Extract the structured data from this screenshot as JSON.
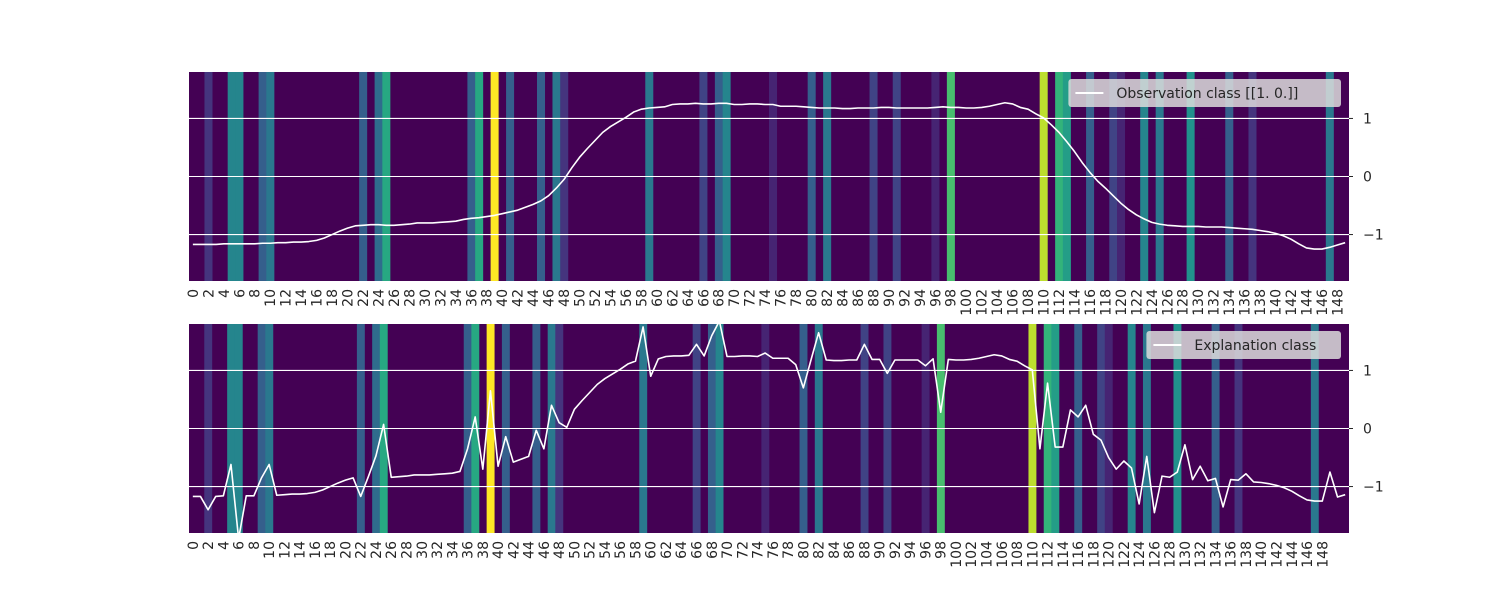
{
  "colors": {
    "background": "#ffffff",
    "line": "#ffffff",
    "grid": "#ffffff",
    "text": "#262626",
    "legend_bg": "#dcdcdc",
    "viridis": [
      "#440154",
      "#472d7b",
      "#3b528b",
      "#2c728e",
      "#21918c",
      "#28ae80",
      "#5ec962",
      "#addc30",
      "#fde725"
    ]
  },
  "chart_data": [
    {
      "type": "line",
      "legend": "Observation class [[1. 0.]]",
      "legend_placement": "top-right",
      "background": "heatmap",
      "grid": true,
      "xlim": [
        0,
        149
      ],
      "ylim": [
        -1.8,
        1.8
      ],
      "yticks": [
        1,
        0,
        -1
      ],
      "ytick_labels": [
        "1",
        "0",
        "−1"
      ],
      "xtick_labels": [
        "0",
        "2",
        "4",
        "6",
        "8",
        "10",
        "12",
        "14",
        "16",
        "18",
        "20",
        "22",
        "24",
        "26",
        "28",
        "30",
        "32",
        "34",
        "36",
        "38",
        "40",
        "42",
        "44",
        "46",
        "48",
        "50",
        "52",
        "54",
        "56",
        "58",
        "60",
        "62",
        "64",
        "66",
        "68",
        "70",
        "72",
        "74",
        "76",
        "78",
        "80",
        "82",
        "84",
        "86",
        "88",
        "90",
        "92",
        "94",
        "96",
        "98",
        "100",
        "102",
        "104",
        "106",
        "108",
        "110",
        "112",
        "114",
        "116",
        "118",
        "120",
        "122",
        "124",
        "126",
        "128",
        "130",
        "132",
        "134",
        "136",
        "138",
        "140",
        "142",
        "144",
        "146",
        "148"
      ],
      "heat_index": [
        {
          "i": 2,
          "v": 0.15
        },
        {
          "i": 5,
          "v": 0.45
        },
        {
          "i": 6,
          "v": 0.45
        },
        {
          "i": 9,
          "v": 0.3
        },
        {
          "i": 10,
          "v": 0.4
        },
        {
          "i": 22,
          "v": 0.3
        },
        {
          "i": 24,
          "v": 0.35
        },
        {
          "i": 25,
          "v": 0.6
        },
        {
          "i": 36,
          "v": 0.3
        },
        {
          "i": 37,
          "v": 0.6
        },
        {
          "i": 39,
          "v": 1.0
        },
        {
          "i": 41,
          "v": 0.3
        },
        {
          "i": 45,
          "v": 0.3
        },
        {
          "i": 47,
          "v": 0.4
        },
        {
          "i": 48,
          "v": 0.15
        },
        {
          "i": 59,
          "v": 0.4
        },
        {
          "i": 66,
          "v": 0.2
        },
        {
          "i": 68,
          "v": 0.3
        },
        {
          "i": 69,
          "v": 0.45
        },
        {
          "i": 75,
          "v": 0.1
        },
        {
          "i": 80,
          "v": 0.3
        },
        {
          "i": 82,
          "v": 0.4
        },
        {
          "i": 88,
          "v": 0.2
        },
        {
          "i": 91,
          "v": 0.2
        },
        {
          "i": 96,
          "v": 0.1
        },
        {
          "i": 98,
          "v": 0.7
        },
        {
          "i": 110,
          "v": 0.9
        },
        {
          "i": 112,
          "v": 0.65
        },
        {
          "i": 113,
          "v": 0.55
        },
        {
          "i": 116,
          "v": 0.3
        },
        {
          "i": 119,
          "v": 0.2
        },
        {
          "i": 120,
          "v": 0.1
        },
        {
          "i": 123,
          "v": 0.45
        },
        {
          "i": 125,
          "v": 0.4
        },
        {
          "i": 129,
          "v": 0.5
        },
        {
          "i": 134,
          "v": 0.3
        },
        {
          "i": 137,
          "v": 0.15
        },
        {
          "i": 147,
          "v": 0.4
        }
      ],
      "y": [
        -1.17,
        -1.17,
        -1.17,
        -1.17,
        -1.16,
        -1.16,
        -1.16,
        -1.16,
        -1.16,
        -1.15,
        -1.15,
        -1.14,
        -1.14,
        -1.13,
        -1.13,
        -1.12,
        -1.1,
        -1.06,
        -1.0,
        -0.94,
        -0.89,
        -0.85,
        -0.84,
        -0.83,
        -0.83,
        -0.84,
        -0.84,
        -0.83,
        -0.82,
        -0.8,
        -0.8,
        -0.8,
        -0.79,
        -0.78,
        -0.77,
        -0.74,
        -0.72,
        -0.71,
        -0.69,
        -0.67,
        -0.64,
        -0.61,
        -0.58,
        -0.53,
        -0.48,
        -0.42,
        -0.33,
        -0.2,
        -0.05,
        0.15,
        0.33,
        0.48,
        0.62,
        0.76,
        0.86,
        0.94,
        1.02,
        1.11,
        1.16,
        1.18,
        1.19,
        1.2,
        1.24,
        1.25,
        1.25,
        1.26,
        1.25,
        1.25,
        1.26,
        1.26,
        1.24,
        1.24,
        1.25,
        1.25,
        1.24,
        1.24,
        1.21,
        1.21,
        1.21,
        1.2,
        1.19,
        1.18,
        1.18,
        1.18,
        1.17,
        1.17,
        1.18,
        1.18,
        1.18,
        1.19,
        1.19,
        1.18,
        1.18,
        1.18,
        1.18,
        1.18,
        1.19,
        1.2,
        1.19,
        1.19,
        1.18,
        1.18,
        1.19,
        1.21,
        1.24,
        1.27,
        1.25,
        1.19,
        1.16,
        1.08,
        1.01,
        0.89,
        0.76,
        0.6,
        0.43,
        0.24,
        0.07,
        -0.08,
        -0.2,
        -0.33,
        -0.46,
        -0.57,
        -0.66,
        -0.73,
        -0.79,
        -0.82,
        -0.84,
        -0.85,
        -0.86,
        -0.86,
        -0.86,
        -0.87,
        -0.87,
        -0.87,
        -0.88,
        -0.89,
        -0.9,
        -0.91,
        -0.93,
        -0.95,
        -0.98,
        -1.02,
        -1.08,
        -1.16,
        -1.23,
        -1.25,
        -1.25,
        -1.22,
        -1.18,
        -1.14
      ]
    },
    {
      "type": "line",
      "legend": "Explanation class",
      "legend_placement": "top-right",
      "background": "heatmap",
      "grid": true,
      "xlim": [
        0,
        149
      ],
      "ylim": [
        -1.8,
        1.8
      ],
      "yticks": [
        1,
        0,
        -1
      ],
      "ytick_labels": [
        "1",
        "0",
        "−1"
      ],
      "xtick_labels": [
        "0",
        "2",
        "4",
        "6",
        "8",
        "10",
        "12",
        "14",
        "16",
        "18",
        "20",
        "22",
        "24",
        "26",
        "28",
        "30",
        "32",
        "34",
        "36",
        "38",
        "40",
        "42",
        "44",
        "46",
        "48",
        "50",
        "52",
        "54",
        "56",
        "58",
        "60",
        "62",
        "64",
        "66",
        "68",
        "70",
        "72",
        "74",
        "76",
        "78",
        "80",
        "82",
        "84",
        "86",
        "88",
        "90",
        "92",
        "94",
        "96",
        "98",
        "100",
        "102",
        "104",
        "106",
        "108",
        "110",
        "112",
        "114",
        "116",
        "118",
        "120",
        "122",
        "124",
        "126",
        "128",
        "130",
        "132",
        "134",
        "136",
        "138",
        "140",
        "142",
        "144",
        "146",
        "148"
      ],
      "y": [
        -1.17,
        -1.17,
        -1.4,
        -1.17,
        -1.16,
        -0.62,
        -1.9,
        -1.16,
        -1.16,
        -0.85,
        -0.62,
        -1.15,
        -1.14,
        -1.13,
        -1.13,
        -1.12,
        -1.1,
        -1.06,
        -1.0,
        -0.94,
        -0.89,
        -0.85,
        -1.17,
        -0.83,
        -0.47,
        0.07,
        -0.84,
        -0.83,
        -0.82,
        -0.8,
        -0.8,
        -0.8,
        -0.79,
        -0.78,
        -0.77,
        -0.74,
        -0.35,
        0.2,
        -0.7,
        0.65,
        -0.65,
        -0.14,
        -0.58,
        -0.53,
        -0.48,
        -0.03,
        -0.35,
        0.4,
        0.1,
        0.02,
        0.33,
        0.48,
        0.62,
        0.76,
        0.86,
        0.94,
        1.02,
        1.11,
        1.16,
        1.75,
        0.9,
        1.2,
        1.24,
        1.25,
        1.25,
        1.26,
        1.45,
        1.25,
        1.6,
        1.85,
        1.24,
        1.24,
        1.25,
        1.25,
        1.24,
        1.3,
        1.21,
        1.21,
        1.21,
        1.1,
        0.7,
        1.18,
        1.65,
        1.18,
        1.17,
        1.17,
        1.18,
        1.18,
        1.45,
        1.19,
        1.19,
        0.95,
        1.18,
        1.18,
        1.18,
        1.18,
        1.08,
        1.2,
        0.28,
        1.19,
        1.18,
        1.18,
        1.19,
        1.21,
        1.24,
        1.27,
        1.25,
        1.19,
        1.16,
        1.08,
        1.01,
        -0.35,
        0.78,
        -0.32,
        -0.32,
        0.32,
        0.2,
        0.4,
        -0.1,
        -0.2,
        -0.5,
        -0.7,
        -0.56,
        -0.68,
        -1.3,
        -0.48,
        -1.45,
        -0.82,
        -0.84,
        -0.75,
        -0.28,
        -0.88,
        -0.65,
        -0.9,
        -0.86,
        -1.35,
        -0.88,
        -0.89,
        -0.78,
        -0.92,
        -0.93,
        -0.95,
        -0.98,
        -1.02,
        -1.08,
        -1.16,
        -1.23,
        -1.25,
        -1.25,
        -0.75,
        -1.18,
        -1.14
      ]
    }
  ]
}
